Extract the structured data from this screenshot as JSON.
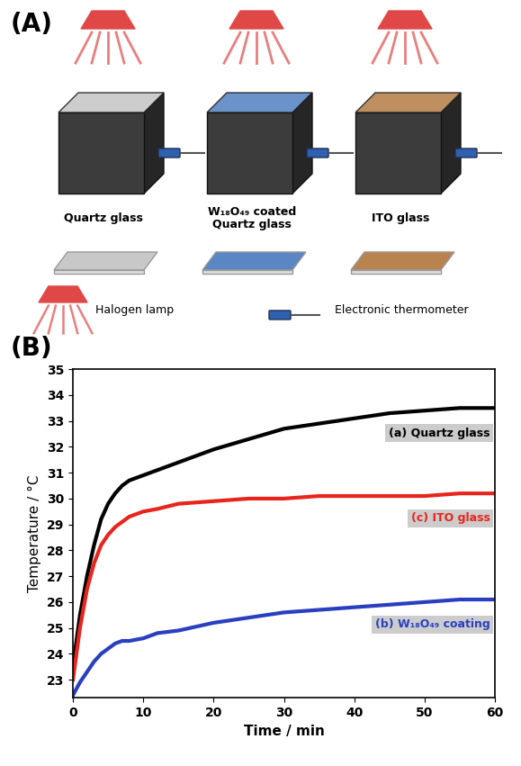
{
  "diagram": {
    "label": "(A)",
    "glasses": [
      "Quartz glass",
      "W₁₈O₄₉ coated\nQuartz glass",
      "ITO glass"
    ],
    "lamp_label": "Halogen lamp",
    "thermometer_label": "Electronic thermometer"
  },
  "chart_data": {
    "type": "line",
    "title": "(B)",
    "xlabel": "Time / min",
    "ylabel": "Temperature / °C",
    "x": [
      0,
      1,
      2,
      3,
      4,
      5,
      6,
      7,
      8,
      10,
      12,
      15,
      20,
      25,
      30,
      35,
      40,
      45,
      50,
      55,
      60
    ],
    "series": [
      {
        "name": "(a) Quartz glass",
        "color": "#000000",
        "values": [
          23.5,
          25.5,
          27,
          28.2,
          29.2,
          29.8,
          30.2,
          30.5,
          30.7,
          30.9,
          31.1,
          31.4,
          31.9,
          32.3,
          32.7,
          32.9,
          33.1,
          33.3,
          33.4,
          33.5,
          33.5
        ]
      },
      {
        "name": "(c) ITO glass",
        "color": "#e8251c",
        "values": [
          23,
          25,
          26.5,
          27.5,
          28.2,
          28.6,
          28.9,
          29.1,
          29.3,
          29.5,
          29.6,
          29.8,
          29.9,
          30,
          30,
          30.1,
          30.1,
          30.1,
          30.1,
          30.2,
          30.2
        ]
      },
      {
        "name": "(b) W₁₈O₄₉ coating",
        "color": "#2a3fbf",
        "values": [
          22.4,
          22.9,
          23.3,
          23.7,
          24,
          24.2,
          24.4,
          24.5,
          24.5,
          24.6,
          24.8,
          24.9,
          25.2,
          25.4,
          25.6,
          25.7,
          25.8,
          25.9,
          26,
          26.1,
          26.1
        ]
      }
    ],
    "xlim": [
      0,
      60
    ],
    "xticks": [
      0,
      10,
      20,
      30,
      40,
      50,
      60
    ],
    "ylim": [
      22.3,
      35
    ],
    "yticks": [
      23,
      24,
      25,
      26,
      27,
      28,
      29,
      30,
      31,
      32,
      33,
      34,
      35
    ]
  }
}
